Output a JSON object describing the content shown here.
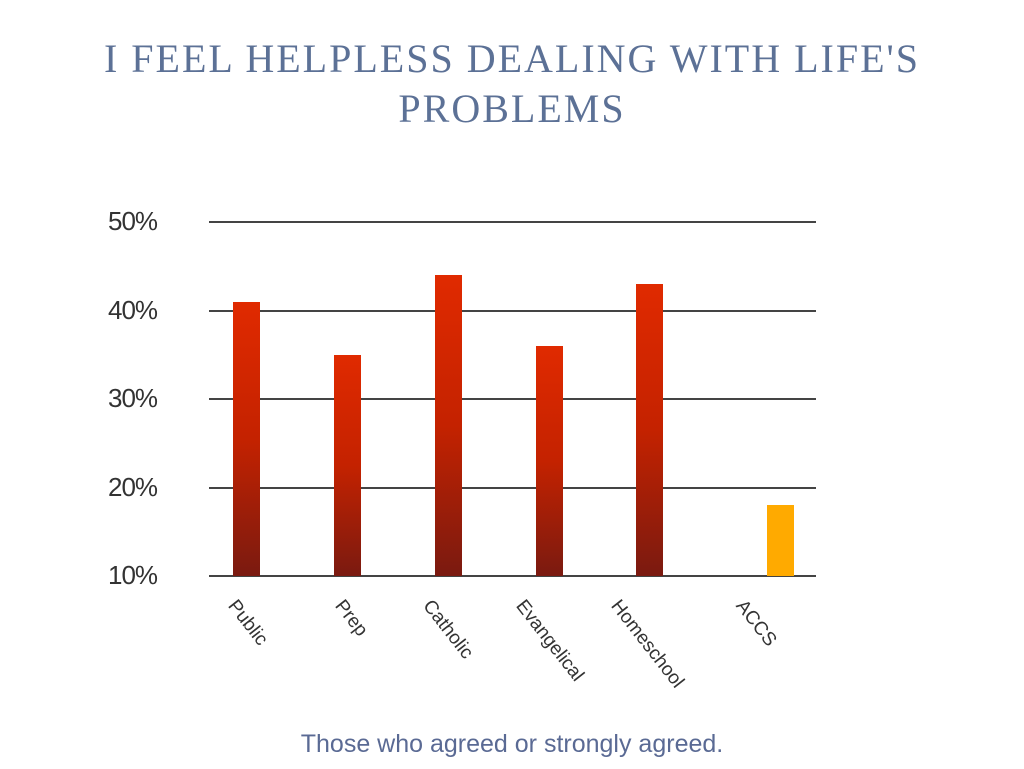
{
  "chart_data": {
    "type": "bar",
    "title": "I FEEL HELPLESS DEALING WITH LIFE'S PROBLEMS",
    "subtitle": "",
    "xlabel": "",
    "ylabel": "",
    "caption": "Those who agreed or strongly agreed.",
    "categories": [
      "Public",
      "Prep",
      "Catholic",
      "Evangelical",
      "Homeschool",
      "ACCS"
    ],
    "values": [
      41,
      35,
      44,
      36,
      43,
      18
    ],
    "unit": "%",
    "ylim": [
      10,
      50
    ],
    "yticks": [
      "10%",
      "20%",
      "30%",
      "40%",
      "50%"
    ],
    "grid": true,
    "legend": null,
    "colors": [
      "#c42200",
      "#c42200",
      "#c42200",
      "#c42200",
      "#c42200",
      "#ffaa00"
    ]
  },
  "title": "I FEEL HELPLESS DEALING WITH LIFE'S PROBLEMS",
  "caption": "Those who agreed or strongly agreed.",
  "yticks": [
    "50%",
    "40%",
    "30%",
    "20%",
    "10%"
  ],
  "categories": [
    "Public",
    "Prep",
    "Catholic",
    "Evangelical",
    "Homeschool",
    "ACCS"
  ]
}
